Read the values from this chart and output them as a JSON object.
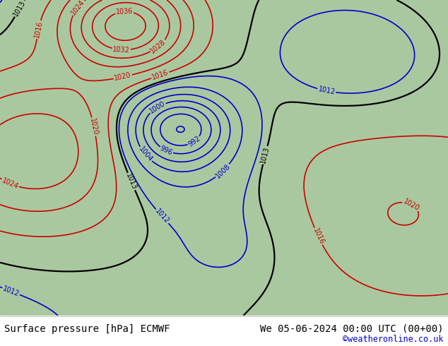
{
  "title_left": "Surface pressure [hPa] ECMWF",
  "title_right": "We 05-06-2024 00:00 UTC (00+00)",
  "copyright": "©weatheronline.co.uk",
  "fig_width": 6.34,
  "fig_height": 4.9,
  "dpi": 100,
  "bottom_bar_color": "#ffffff",
  "bottom_text_color": "#000000",
  "copyright_color": "#0000cc",
  "title_fontsize": 10.0,
  "copyright_fontsize": 8.5,
  "bottom_bar_height": 0.088,
  "map_bg_color": "#aac8a0",
  "ocean_color": "#b8d4e8",
  "contour_low_color": "#0000cc",
  "contour_high_color": "#cc0000",
  "contour_mid_color": "#000000",
  "contour_linewidth": 1.2,
  "contour_mid_linewidth": 1.6,
  "label_fontsize": 7
}
